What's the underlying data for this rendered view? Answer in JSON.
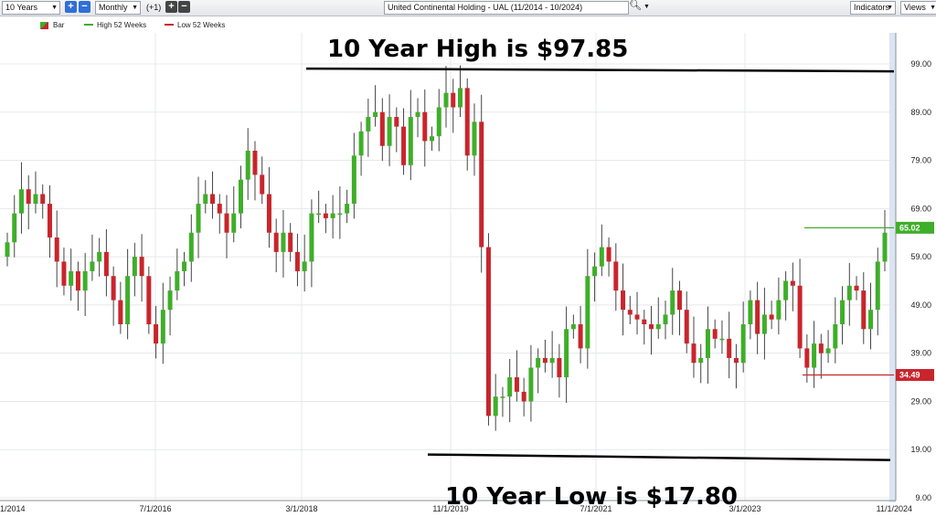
{
  "toolbar": {
    "range": "10 Years",
    "interval": "Monthly",
    "step": "(+1)",
    "title": "United Continental Holding - UAL (11/2014 - 10/2024)",
    "indicators": "Indicators",
    "views": "Views",
    "plus": "+",
    "minus": "−"
  },
  "legend": {
    "bar": "Bar",
    "high": "High 52 Weeks",
    "low": "Low 52 Weeks"
  },
  "colors": {
    "up": "#3fae2a",
    "down": "#c9252c",
    "high": "#3fae2a",
    "low": "#c9252c",
    "annotation": "#000000"
  },
  "chart_data": {
    "type": "candlestick",
    "interval": "monthly",
    "ylim": [
      9,
      104
    ],
    "y_ticks": [
      "99.00",
      "89.00",
      "79.00",
      "69.00",
      "59.00",
      "49.00",
      "39.00",
      "29.00",
      "19.00",
      "9.00"
    ],
    "x_ticks": [
      "1/2014",
      "7/1/2016",
      "3/1/2018",
      "11/1/2019",
      "7/1/2021",
      "3/1/2023",
      "11/1/2024"
    ],
    "annotations": {
      "high_text": "10 Year High is $97.85",
      "high_value": 97.85,
      "low_text": "10 Year Low is $17.80",
      "low_value": 17.8
    },
    "high_52_week": "65.02",
    "low_52_week": "34.49",
    "closes": [
      62,
      68,
      73,
      70,
      72,
      70,
      63,
      58,
      53,
      56,
      52,
      56,
      58,
      60,
      55,
      50,
      45,
      55,
      59,
      55,
      45,
      41,
      48,
      52,
      56,
      58,
      64,
      70,
      72,
      70,
      68,
      64,
      68,
      75,
      81,
      76,
      72,
      64,
      60,
      64,
      60,
      56,
      58,
      68,
      68,
      67,
      68,
      68,
      70,
      80,
      85,
      88,
      89,
      82,
      88,
      86,
      78,
      88,
      89,
      83,
      84,
      90,
      93,
      90,
      94,
      80,
      87,
      61,
      26,
      30,
      30,
      34,
      31,
      29,
      36,
      38,
      37,
      38,
      34,
      44,
      45,
      40,
      55,
      57,
      61,
      58,
      52,
      48,
      47,
      46,
      45,
      44,
      45,
      47,
      52,
      48,
      41,
      37,
      38,
      44,
      42,
      42,
      38,
      37,
      45,
      50,
      43,
      47,
      46,
      50,
      54,
      53,
      40,
      36,
      41,
      39,
      40,
      45,
      50,
      53,
      52,
      44,
      48,
      58,
      64
    ]
  }
}
